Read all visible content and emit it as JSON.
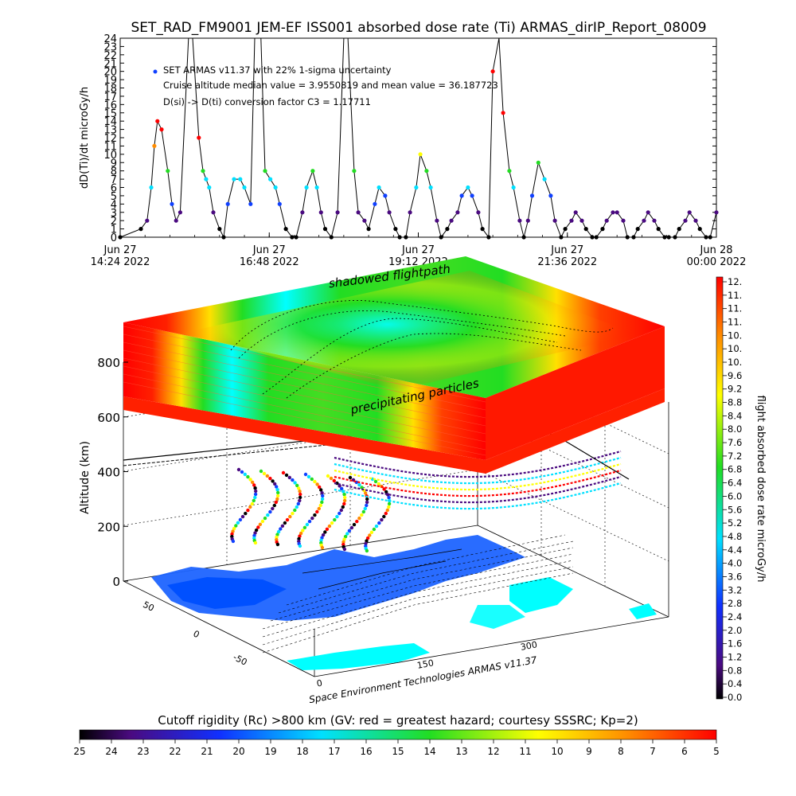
{
  "title": "SET_RAD_FM9001  JEM-EF ISS001 absorbed dose rate (Ti) ARMAS_dirIP_Report_08009",
  "chart_data": [
    {
      "type": "line",
      "title": "SET_RAD_FM9001  JEM-EF ISS001 absorbed dose rate (Ti) ARMAS_dirIP_Report_08009",
      "ylabel": "dD(Ti)/dt microGy/h",
      "ylim": [
        0,
        24
      ],
      "yticks": [
        "0",
        "1",
        "2",
        "3",
        "4",
        "5",
        "6",
        "7",
        "8",
        "9",
        "10",
        "11",
        "12",
        "13",
        "14",
        "15",
        "16",
        "17",
        "18",
        "19",
        "20",
        "21",
        "22",
        "23",
        "24"
      ],
      "xlim": [
        "2022-06-27 14:24",
        "2022-06-28 00:00"
      ],
      "xticks": [
        {
          "top": "Jun 27",
          "bottom": "14:24 2022"
        },
        {
          "top": "Jun 27",
          "bottom": "16:48 2022"
        },
        {
          "top": "Jun 27",
          "bottom": "19:12 2022"
        },
        {
          "top": "Jun 27",
          "bottom": "21:36 2022"
        },
        {
          "top": "Jun 28",
          "bottom": "00:00 2022"
        }
      ],
      "legend": {
        "placement": "top-left",
        "marker": "SET ARMAS v11.37 with 22% 1-sigma uncertainty",
        "line2": "Cruise altitude median value = 3.9550819 and mean value = 36.187723",
        "line3": "D(si) -> D(ti) conversion factor C3 = 1.17711"
      },
      "series": [
        {
          "x_minutes": [
            0,
            20,
            26,
            30,
            33,
            36,
            40,
            46,
            50,
            54,
            58,
            66,
            70,
            76,
            80,
            83,
            86,
            90,
            96,
            100,
            104,
            110,
            116,
            120,
            126,
            130,
            136,
            140,
            145,
            150,
            154,
            160,
            166,
            170,
            176,
            180,
            186,
            190,
            194,
            198,
            204,
            210,
            216,
            220,
            226,
            230,
            236,
            240,
            246,
            250,
            256,
            260,
            266,
            270,
            276,
            280,
            286,
            290,
            296,
            300,
            306,
            310,
            316,
            320,
            326,
            330,
            336,
            340,
            346,
            350,
            356,
            360,
            366,
            370,
            376,
            380,
            386,
            390,
            394,
            398,
            404,
            410,
            416,
            420,
            426,
            430,
            436,
            440,
            446,
            450,
            456,
            460,
            466,
            470,
            476,
            480,
            486,
            490,
            496,
            500,
            506,
            510,
            516,
            520,
            526,
            530,
            536,
            540,
            546,
            550,
            556,
            560,
            566,
            570,
            576
          ],
          "values": [
            0,
            1,
            2,
            6,
            11,
            14,
            13,
            8,
            4,
            2,
            3,
            24,
            24,
            12,
            8,
            7,
            6,
            3,
            1,
            0,
            4,
            7,
            7,
            6,
            4,
            24,
            24,
            8,
            7,
            6,
            4,
            1,
            0,
            0,
            3,
            6,
            8,
            6,
            3,
            1,
            0,
            3,
            24,
            24,
            8,
            3,
            2,
            1,
            4,
            6,
            5,
            3,
            1,
            0,
            0,
            3,
            6,
            10,
            8,
            6,
            2,
            0,
            1,
            2,
            3,
            5,
            6,
            5,
            3,
            1,
            0,
            20,
            24,
            15,
            8,
            6,
            2,
            0,
            2,
            5,
            9,
            7,
            5,
            2,
            0,
            1,
            2,
            3,
            2,
            1,
            0,
            0,
            1,
            2,
            3,
            3,
            2,
            0,
            0,
            1,
            2,
            3,
            2,
            1,
            0,
            0,
            0,
            1,
            2,
            3,
            2,
            1,
            0,
            0,
            3
          ]
        }
      ]
    },
    {
      "type": "scatter",
      "subtype": "3d-flightpath",
      "zlabel": "Altitude (km)",
      "zlim": [
        0,
        800
      ],
      "zticks": [
        "0",
        "200",
        "400",
        "600",
        "800"
      ],
      "xticks": [
        "0",
        "150",
        "300"
      ],
      "yticks": [
        "-50",
        "0",
        "50"
      ],
      "annotations": [
        "shadowed flightpath",
        "precipitating particles"
      ],
      "credit": "Space Environment Technologies ARMAS v11.37"
    }
  ],
  "colorbar_right": {
    "label": "flight absorbed dose rate microGy/h",
    "ticks": [
      "12.",
      "11.",
      "11.",
      "11.",
      "10.",
      "10.",
      "10.",
      "9.6",
      "9.2",
      "8.8",
      "8.4",
      "8.0",
      "7.6",
      "7.2",
      "6.8",
      "6.4",
      "6.0",
      "5.6",
      "5.2",
      "4.8",
      "4.4",
      "4.0",
      "3.6",
      "3.2",
      "2.8",
      "2.4",
      "2.0",
      "1.6",
      "1.2",
      "0.8",
      "0.4",
      "0.0"
    ]
  },
  "colorbar_bottom": {
    "title": "Cutoff rigidity (Rc) >800 km (GV: red = greatest hazard; courtesy SSSRC; Kp=2)",
    "ticks": [
      "25",
      "24",
      "23",
      "22",
      "21",
      "20",
      "19",
      "18",
      "17",
      "16",
      "15",
      "14",
      "13",
      "12",
      "11",
      "10",
      "9",
      "8",
      "7",
      "6",
      "5"
    ]
  },
  "colors": {
    "red": "#ff2000",
    "orange": "#ff8c00",
    "yellow": "#ffff00",
    "green": "#22dd22",
    "cyan": "#00ffff",
    "blue": "#1040ff",
    "purple": "#5a10a0",
    "black": "#000000",
    "land": "#1e64ff",
    "ocean": "#ffffff"
  }
}
